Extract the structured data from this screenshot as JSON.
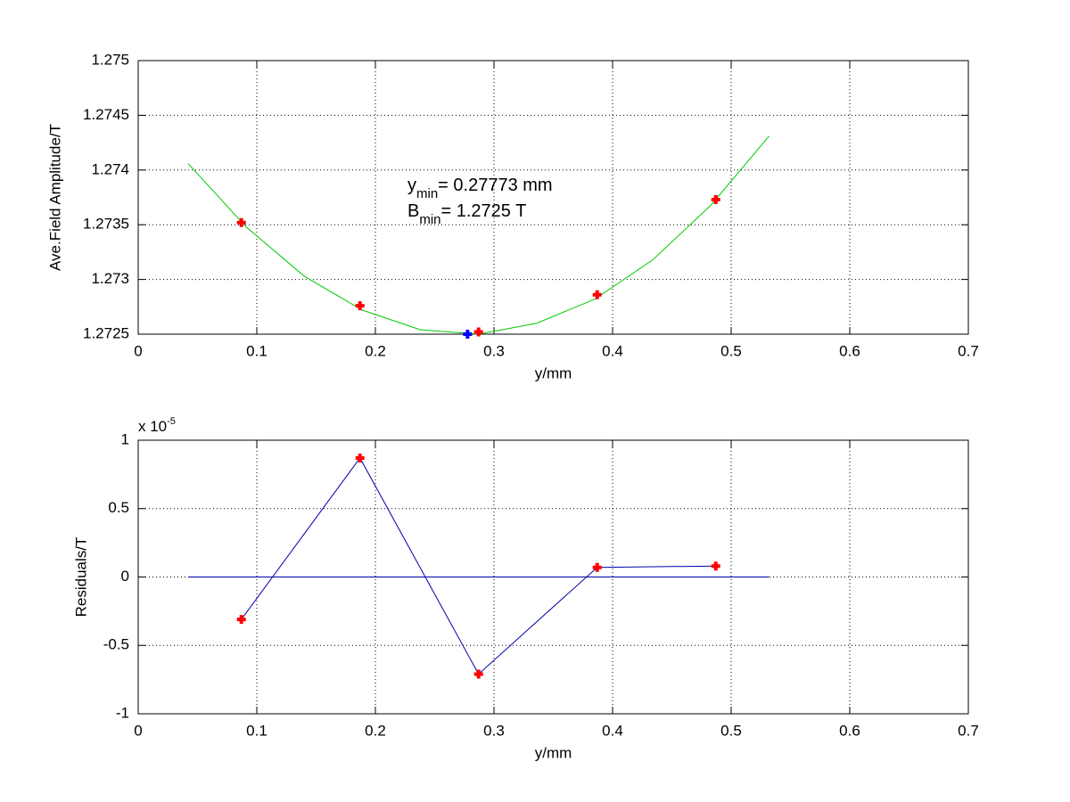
{
  "chart_data": [
    {
      "type": "line",
      "xlabel": "y/mm",
      "ylabel": "Ave.Field Amplitude/T",
      "xlim": [
        0,
        0.7
      ],
      "xticks": [
        0,
        0.1,
        0.2,
        0.3,
        0.4,
        0.5,
        0.6,
        0.7
      ],
      "ylim": [
        1.2725,
        1.275
      ],
      "yticks": [
        1.2725,
        1.273,
        1.2735,
        1.274,
        1.2745,
        1.275
      ],
      "grid": true,
      "annotations": [
        {
          "base": "y",
          "sub": "min",
          "text": "= 0.27773 mm"
        },
        {
          "base": "B",
          "sub": "min",
          "text": "= 1.2725 T"
        }
      ],
      "series": [
        {
          "color": "#00cc00",
          "line": true,
          "marker": "none",
          "x": [
            0.042,
            0.091,
            0.14,
            0.189,
            0.238,
            0.287,
            0.336,
            0.385,
            0.434,
            0.483,
            0.532
          ],
          "values": [
            1.27406,
            1.27348,
            1.27303,
            1.27272,
            1.27254,
            1.2725,
            1.2726,
            1.27282,
            1.27318,
            1.27368,
            1.27431
          ]
        },
        {
          "color": "#ff0000",
          "line": false,
          "marker": "plus",
          "x": [
            0.087,
            0.187,
            0.287,
            0.387,
            0.487
          ],
          "values": [
            1.27352,
            1.27276,
            1.27252,
            1.27286,
            1.27373
          ]
        },
        {
          "color": "#0000ff",
          "line": false,
          "marker": "plus",
          "x": [
            0.27773
          ],
          "values": [
            1.2725
          ]
        }
      ]
    },
    {
      "type": "line",
      "xlabel": "y/mm",
      "ylabel": "Residuals/T",
      "exponent": {
        "base": "x 10",
        "sup": "-5"
      },
      "xlim": [
        0,
        0.7
      ],
      "xticks": [
        0,
        0.1,
        0.2,
        0.3,
        0.4,
        0.5,
        0.6,
        0.7
      ],
      "ylim": [
        -1,
        1
      ],
      "yticks": [
        -1,
        -0.5,
        0,
        0.5,
        1
      ],
      "grid": true,
      "series": [
        {
          "color": "#0000aa",
          "line": true,
          "marker": "none",
          "x": [
            0.042,
            0.532
          ],
          "values": [
            0,
            0
          ]
        },
        {
          "color": "#0000aa",
          "line": true,
          "marker": "plus",
          "marker_color": "#ff0000",
          "x": [
            0.087,
            0.187,
            0.287,
            0.387,
            0.487
          ],
          "values": [
            -0.31,
            0.87,
            -0.71,
            0.07,
            0.08
          ]
        }
      ]
    }
  ]
}
